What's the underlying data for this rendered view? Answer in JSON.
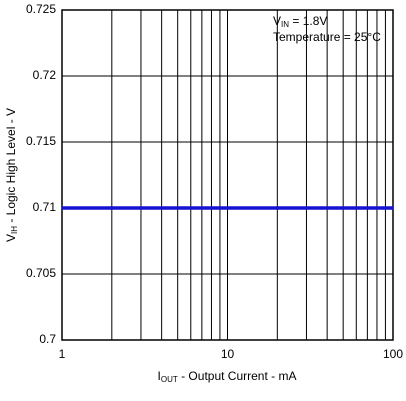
{
  "chart_data": {
    "type": "line",
    "x_label": [
      "I",
      "OUT",
      " - Output Current - mA"
    ],
    "y_label": [
      "V",
      "IH",
      " - Logic High Level - V"
    ],
    "annotations": [
      [
        "V",
        "IN",
        " = 1.8V"
      ],
      [
        "Temperature = 25°C"
      ]
    ],
    "x": [
      1,
      100
    ],
    "series": [
      {
        "color": "#1414d2",
        "values": [
          0.71,
          0.71
        ]
      }
    ],
    "xlim": [
      1,
      100
    ],
    "xticks": [
      1,
      10,
      100
    ],
    "xscale": "log",
    "ylim": [
      0.7,
      0.725
    ],
    "yticks": [
      0.7,
      0.705,
      0.71,
      0.715,
      0.72,
      0.725
    ],
    "grid": true
  }
}
